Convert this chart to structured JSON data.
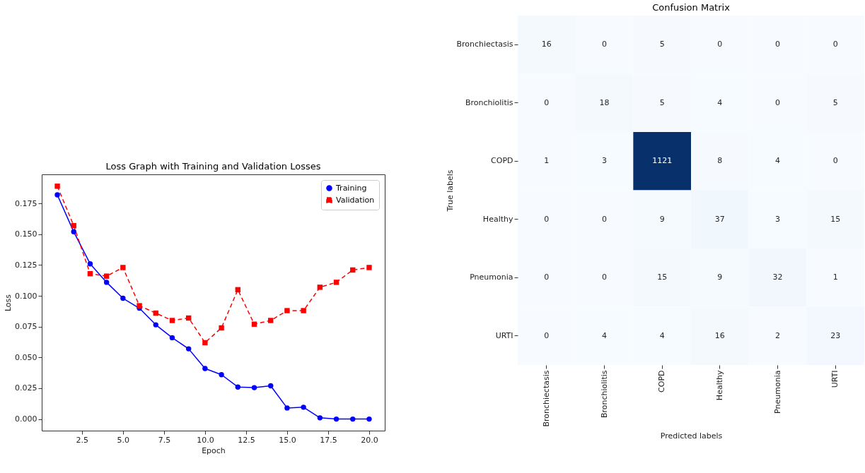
{
  "chart_data": [
    {
      "type": "line",
      "title": "Loss Graph with Training and Validation Losses",
      "xlabel": "Epoch",
      "ylabel": "Loss",
      "x": [
        1,
        2,
        3,
        4,
        5,
        6,
        7,
        8,
        9,
        10,
        11,
        12,
        13,
        14,
        15,
        16,
        17,
        18,
        19,
        20
      ],
      "series": [
        {
          "name": "Training",
          "color": "#0000ff",
          "marker": "circle",
          "line_style": "solid",
          "values": [
            0.182,
            0.152,
            0.126,
            0.111,
            0.098,
            0.09,
            0.0765,
            0.066,
            0.057,
            0.041,
            0.036,
            0.026,
            0.0255,
            0.027,
            0.009,
            0.0096,
            0.001,
            0.0,
            0.0,
            0.0
          ]
        },
        {
          "name": "Validation",
          "color": "#ff0000",
          "marker": "square",
          "line_style": "dashed",
          "values": [
            0.189,
            0.157,
            0.118,
            0.116,
            0.123,
            0.092,
            0.086,
            0.08,
            0.082,
            0.062,
            0.074,
            0.105,
            0.077,
            0.08,
            0.088,
            0.088,
            0.107,
            0.111,
            0.121,
            0.123
          ]
        }
      ],
      "xlim": [
        0.05,
        20.95
      ],
      "ylim": [
        -0.0094,
        0.1986
      ],
      "xticks": [
        {
          "value": 2.5,
          "label": "2.5"
        },
        {
          "value": 5,
          "label": "5.0"
        },
        {
          "value": 7.5,
          "label": "7.5"
        },
        {
          "value": 10,
          "label": "10.0"
        },
        {
          "value": 12.5,
          "label": "12.5"
        },
        {
          "value": 15,
          "label": "15.0"
        },
        {
          "value": 17.5,
          "label": "17.5"
        },
        {
          "value": 20,
          "label": "20.0"
        }
      ],
      "yticks": [
        {
          "value": 0,
          "label": "0.000"
        },
        {
          "value": 0.025,
          "label": "0.025"
        },
        {
          "value": 0.05,
          "label": "0.050"
        },
        {
          "value": 0.075,
          "label": "0.075"
        },
        {
          "value": 0.1,
          "label": "0.100"
        },
        {
          "value": 0.125,
          "label": "0.125"
        },
        {
          "value": 0.15,
          "label": "0.150"
        },
        {
          "value": 0.175,
          "label": "0.175"
        }
      ],
      "legend": "top right",
      "grid": false
    },
    {
      "type": "heatmap",
      "title": "Confusion Matrix",
      "xlabel": "Predicted labels",
      "ylabel": "True labels",
      "categories": [
        "Bronchiectasis",
        "Bronchiolitis",
        "COPD",
        "Healthy",
        "Pneumonia",
        "URTI"
      ],
      "y_categories": [
        "Bronchiectasis",
        "Bronchiolitis",
        "COPD",
        "Healthy",
        "Pneumonia",
        "URTI"
      ],
      "cells": [
        [
          16,
          0,
          5,
          0,
          0,
          0
        ],
        [
          0,
          18,
          5,
          4,
          0,
          5
        ],
        [
          1,
          3,
          1121,
          8,
          4,
          0
        ],
        [
          0,
          0,
          9,
          37,
          3,
          15
        ],
        [
          0,
          0,
          15,
          9,
          32,
          1
        ],
        [
          0,
          4,
          4,
          16,
          2,
          23
        ]
      ],
      "data_labels": true
    }
  ]
}
